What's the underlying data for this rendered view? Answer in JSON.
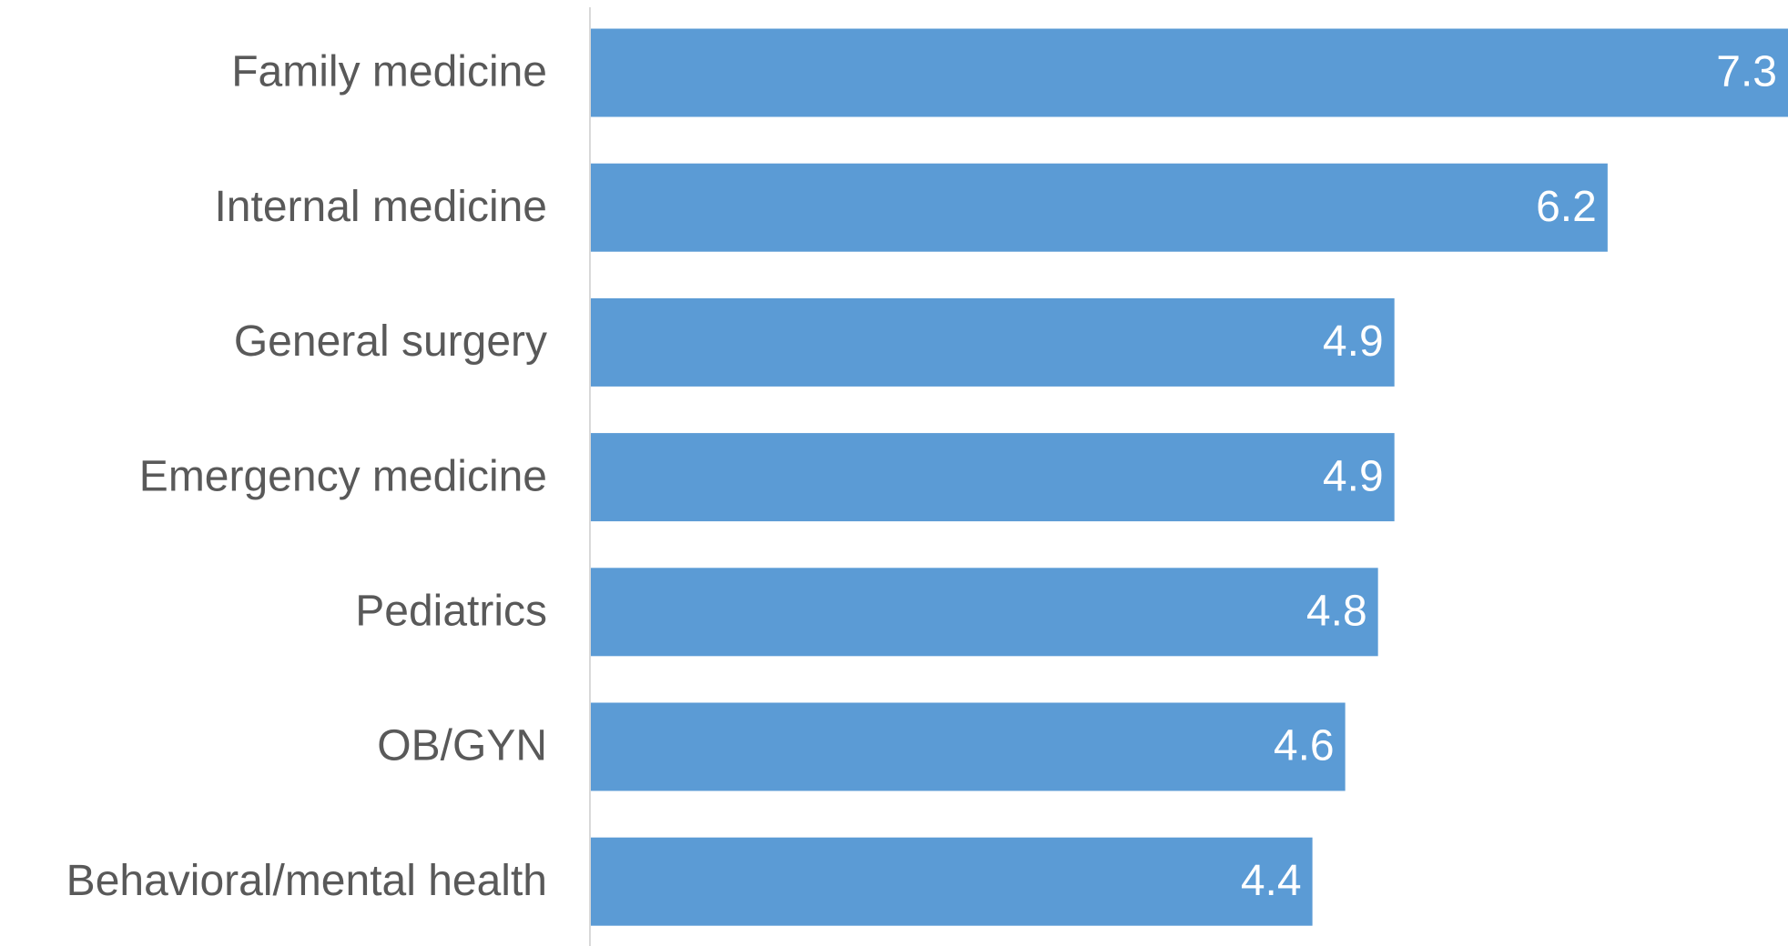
{
  "chart_data": {
    "type": "bar",
    "orientation": "horizontal",
    "categories": [
      "Family medicine",
      "Internal medicine",
      "General surgery",
      "Emergency medicine",
      "Pediatrics",
      "OB/GYN",
      "Behavioral/mental health"
    ],
    "values": [
      7.3,
      6.2,
      4.9,
      4.9,
      4.8,
      4.6,
      4.4
    ],
    "color": "#5b9bd5"
  }
}
